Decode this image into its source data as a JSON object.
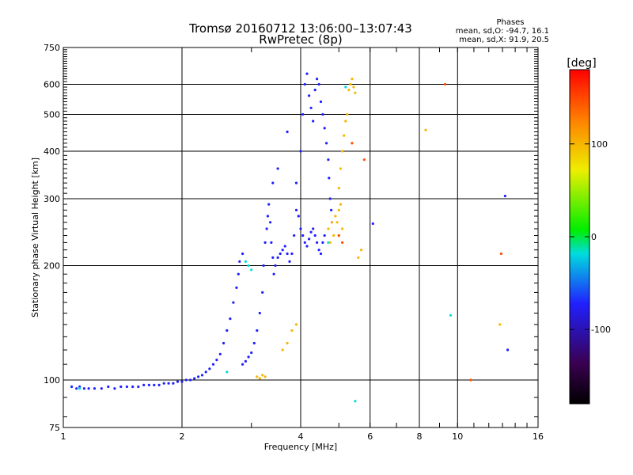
{
  "chart_data": {
    "type": "scatter",
    "title": "Tromsø 20160712 13:06:00–13:07:43",
    "subtitle": "RwPretec (8p)",
    "stats": {
      "heading": "Phases",
      "line1": "mean, sd,O: -94.7, 16.1",
      "line2": "mean, sd,X:  91.9, 20.5"
    },
    "xlabel": "Frequency [MHz]",
    "ylabel": "Stationary phase Virtual Height [km]",
    "x_scale": "log",
    "y_scale": "log",
    "xlim": [
      1,
      16
    ],
    "ylim": [
      75,
      750
    ],
    "x_ticks": [
      1,
      2,
      4,
      6,
      8,
      10,
      16
    ],
    "x_tick_labels": [
      "1",
      "2",
      "4",
      "6",
      "8",
      "10",
      "16"
    ],
    "y_ticks": [
      75,
      100,
      200,
      300,
      400,
      500,
      600,
      750
    ],
    "y_tick_labels": [
      "75",
      "100",
      "200",
      "300",
      "400",
      "500",
      "600",
      "750"
    ],
    "grid": true,
    "colorbar": {
      "label": "[deg]",
      "range": [
        -180,
        180
      ],
      "tick_values": [
        100,
        0,
        -100
      ],
      "tick_labels": [
        "100",
        "0",
        "-100"
      ],
      "colors": [
        "#000000",
        "#3a0050",
        "#2020ff",
        "#00dddd",
        "#00ee00",
        "#eeee00",
        "#ff8000",
        "#ff0000"
      ]
    },
    "series": [
      {
        "mode": "O",
        "phase_deg": -100,
        "points": [
          [
            1.05,
            96
          ],
          [
            1.08,
            95
          ],
          [
            1.1,
            96
          ],
          [
            1.13,
            95
          ],
          [
            1.16,
            95
          ],
          [
            1.2,
            95
          ],
          [
            1.25,
            95
          ],
          [
            1.3,
            96
          ],
          [
            1.35,
            95
          ],
          [
            1.4,
            96
          ],
          [
            1.45,
            96
          ],
          [
            1.5,
            96
          ],
          [
            1.55,
            96
          ],
          [
            1.6,
            97
          ],
          [
            1.65,
            97
          ],
          [
            1.7,
            97
          ],
          [
            1.75,
            97
          ],
          [
            1.8,
            98
          ],
          [
            1.85,
            98
          ],
          [
            1.9,
            98
          ],
          [
            1.95,
            99
          ],
          [
            2.0,
            99
          ],
          [
            2.05,
            100
          ],
          [
            2.1,
            100
          ],
          [
            2.15,
            101
          ],
          [
            2.2,
            102
          ],
          [
            2.25,
            103
          ],
          [
            2.3,
            105
          ],
          [
            2.35,
            107
          ],
          [
            2.4,
            110
          ],
          [
            2.45,
            113
          ],
          [
            2.5,
            117
          ],
          [
            2.55,
            125
          ],
          [
            2.6,
            135
          ],
          [
            2.65,
            145
          ],
          [
            2.7,
            160
          ],
          [
            2.75,
            175
          ],
          [
            2.78,
            190
          ],
          [
            2.8,
            205
          ],
          [
            2.85,
            215
          ],
          [
            2.85,
            110
          ],
          [
            2.9,
            112
          ],
          [
            2.95,
            115
          ],
          [
            3.0,
            118
          ],
          [
            3.05,
            125
          ],
          [
            3.1,
            135
          ],
          [
            3.15,
            150
          ],
          [
            3.2,
            170
          ],
          [
            3.22,
            200
          ],
          [
            3.25,
            230
          ],
          [
            3.28,
            250
          ],
          [
            3.3,
            270
          ],
          [
            3.32,
            290
          ],
          [
            3.35,
            260
          ],
          [
            3.37,
            230
          ],
          [
            3.4,
            210
          ],
          [
            3.42,
            190
          ],
          [
            3.45,
            200
          ],
          [
            3.5,
            210
          ],
          [
            3.55,
            215
          ],
          [
            3.6,
            220
          ],
          [
            3.65,
            225
          ],
          [
            3.7,
            215
          ],
          [
            3.75,
            205
          ],
          [
            3.8,
            215
          ],
          [
            3.85,
            240
          ],
          [
            3.9,
            280
          ],
          [
            3.95,
            270
          ],
          [
            4.0,
            250
          ],
          [
            4.05,
            240
          ],
          [
            4.1,
            230
          ],
          [
            4.15,
            225
          ],
          [
            4.2,
            235
          ],
          [
            4.25,
            245
          ],
          [
            4.3,
            250
          ],
          [
            4.35,
            240
          ],
          [
            4.4,
            230
          ],
          [
            4.45,
            220
          ],
          [
            4.5,
            215
          ],
          [
            4.55,
            230
          ],
          [
            4.6,
            240
          ],
          [
            3.4,
            330
          ],
          [
            3.5,
            360
          ],
          [
            3.7,
            450
          ],
          [
            3.9,
            330
          ],
          [
            4.0,
            400
          ],
          [
            4.05,
            500
          ],
          [
            4.1,
            600
          ],
          [
            4.15,
            640
          ],
          [
            4.2,
            560
          ],
          [
            4.25,
            520
          ],
          [
            4.3,
            480
          ],
          [
            4.35,
            580
          ],
          [
            4.4,
            620
          ],
          [
            4.45,
            600
          ],
          [
            4.5,
            540
          ],
          [
            4.55,
            500
          ],
          [
            4.6,
            460
          ],
          [
            4.65,
            420
          ],
          [
            4.7,
            380
          ],
          [
            4.72,
            340
          ],
          [
            4.75,
            300
          ],
          [
            4.78,
            280
          ],
          [
            4.8,
            260
          ],
          [
            6.1,
            258
          ],
          [
            13.2,
            305
          ],
          [
            13.4,
            120
          ]
        ]
      },
      {
        "mode": "O-cyan",
        "phase_deg": -40,
        "points": [
          [
            2.9,
            205
          ],
          [
            2.95,
            200
          ],
          [
            3.0,
            195
          ],
          [
            1.1,
            95
          ],
          [
            2.6,
            105
          ],
          [
            5.5,
            88
          ],
          [
            9.6,
            148
          ],
          [
            5.2,
            590
          ],
          [
            4.7,
            230
          ]
        ]
      },
      {
        "mode": "X",
        "phase_deg": 100,
        "points": [
          [
            3.1,
            102
          ],
          [
            3.15,
            101
          ],
          [
            3.2,
            103
          ],
          [
            3.25,
            102
          ],
          [
            3.6,
            120
          ],
          [
            3.7,
            125
          ],
          [
            3.8,
            135
          ],
          [
            3.9,
            140
          ],
          [
            4.7,
            250
          ],
          [
            4.8,
            260
          ],
          [
            4.9,
            270
          ],
          [
            5.0,
            280
          ],
          [
            5.05,
            290
          ],
          [
            4.95,
            260
          ],
          [
            4.85,
            240
          ],
          [
            4.75,
            230
          ],
          [
            5.0,
            240
          ],
          [
            5.1,
            250
          ],
          [
            5.0,
            320
          ],
          [
            5.05,
            360
          ],
          [
            5.1,
            400
          ],
          [
            5.15,
            440
          ],
          [
            5.2,
            480
          ],
          [
            5.25,
            500
          ],
          [
            5.3,
            580
          ],
          [
            5.35,
            600
          ],
          [
            5.4,
            620
          ],
          [
            5.45,
            590
          ],
          [
            5.5,
            570
          ],
          [
            5.6,
            210
          ],
          [
            5.7,
            220
          ],
          [
            8.3,
            455
          ],
          [
            12.8,
            140
          ]
        ]
      },
      {
        "mode": "X-orange",
        "phase_deg": 150,
        "points": [
          [
            5.1,
            230
          ],
          [
            5.4,
            420
          ],
          [
            5.8,
            380
          ],
          [
            12.9,
            215
          ],
          [
            10.8,
            100
          ],
          [
            9.3,
            600
          ],
          [
            5.0,
            240
          ]
        ]
      }
    ]
  }
}
